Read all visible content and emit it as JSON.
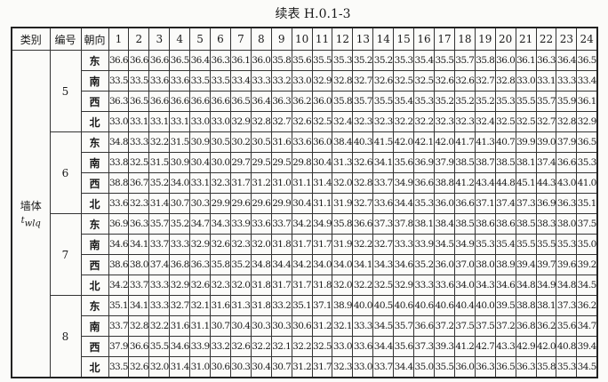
{
  "title": "续表 H.0.1-3",
  "headers": {
    "category": "类别",
    "number": "编号",
    "orientation": "朝向",
    "hours": [
      "1",
      "2",
      "3",
      "4",
      "5",
      "6",
      "7",
      "8",
      "9",
      "10",
      "11",
      "12",
      "13",
      "14",
      "15",
      "16",
      "17",
      "18",
      "19",
      "20",
      "21",
      "22",
      "23",
      "24"
    ]
  },
  "category": {
    "label": "墙体",
    "symbol": "t",
    "subscript": "wlq"
  },
  "groups": [
    {
      "number": "5",
      "rows": [
        {
          "orientation": "东",
          "values": [
            "36.6",
            "36.6",
            "36.6",
            "36.5",
            "36.4",
            "36.3",
            "36.1",
            "36.0",
            "35.8",
            "35.6",
            "35.5",
            "35.3",
            "35.2",
            "35.2",
            "35.3",
            "35.4",
            "35.5",
            "35.7",
            "35.8",
            "36.0",
            "36.1",
            "36.3",
            "36.4",
            "36.5"
          ]
        },
        {
          "orientation": "南",
          "values": [
            "33.5",
            "33.5",
            "33.6",
            "33.6",
            "33.5",
            "33.5",
            "33.4",
            "33.3",
            "33.2",
            "33.0",
            "32.9",
            "32.8",
            "32.7",
            "32.6",
            "32.5",
            "32.5",
            "32.6",
            "32.6",
            "32.7",
            "32.8",
            "33.0",
            "33.1",
            "33.3",
            "33.4"
          ]
        },
        {
          "orientation": "西",
          "values": [
            "36.3",
            "36.5",
            "36.6",
            "36.6",
            "36.6",
            "36.6",
            "36.5",
            "36.4",
            "36.3",
            "36.2",
            "36.0",
            "35.8",
            "35.7",
            "35.5",
            "35.4",
            "35.3",
            "35.2",
            "35.2",
            "35.2",
            "35.3",
            "35.5",
            "35.7",
            "35.9",
            "36.1"
          ]
        },
        {
          "orientation": "北",
          "values": [
            "33.0",
            "33.1",
            "33.1",
            "33.1",
            "33.0",
            "33.0",
            "32.9",
            "32.8",
            "32.7",
            "32.6",
            "32.5",
            "32.4",
            "32.3",
            "32.3",
            "32.2",
            "32.2",
            "32.3",
            "32.3",
            "32.4",
            "32.5",
            "32.5",
            "32.7",
            "32.8",
            "32.9"
          ]
        }
      ]
    },
    {
      "number": "6",
      "rows": [
        {
          "orientation": "东",
          "values": [
            "34.8",
            "33.3",
            "32.2",
            "31.5",
            "30.9",
            "30.5",
            "30.2",
            "30.5",
            "31.6",
            "33.6",
            "36.0",
            "38.4",
            "40.3",
            "41.5",
            "42.0",
            "42.1",
            "42.0",
            "41.7",
            "41.3",
            "40.7",
            "39.9",
            "39.0",
            "37.9",
            "36.5"
          ]
        },
        {
          "orientation": "南",
          "values": [
            "33.8",
            "32.5",
            "31.5",
            "30.9",
            "30.4",
            "30.0",
            "29.7",
            "29.5",
            "29.5",
            "29.8",
            "30.4",
            "31.3",
            "32.6",
            "34.1",
            "35.6",
            "36.9",
            "37.9",
            "38.5",
            "38.7",
            "38.5",
            "38.1",
            "37.4",
            "36.6",
            "35.3"
          ]
        },
        {
          "orientation": "西",
          "values": [
            "38.8",
            "36.7",
            "35.2",
            "34.0",
            "33.1",
            "32.3",
            "31.7",
            "31.2",
            "31.0",
            "31.1",
            "31.4",
            "32.0",
            "32.8",
            "33.7",
            "34.9",
            "36.6",
            "38.8",
            "41.2",
            "43.4",
            "44.8",
            "45.1",
            "44.3",
            "43.0",
            "41.0"
          ]
        },
        {
          "orientation": "北",
          "values": [
            "33.6",
            "32.3",
            "31.4",
            "30.7",
            "30.3",
            "29.9",
            "29.6",
            "29.6",
            "29.9",
            "30.4",
            "31.1",
            "31.9",
            "32.7",
            "33.6",
            "34.4",
            "35.3",
            "36.0",
            "36.6",
            "37.1",
            "37.4",
            "37.3",
            "36.9",
            "36.3",
            "35.1"
          ]
        }
      ]
    },
    {
      "number": "7",
      "rows": [
        {
          "orientation": "东",
          "values": [
            "36.9",
            "36.3",
            "35.7",
            "35.2",
            "34.7",
            "34.3",
            "33.9",
            "33.6",
            "33.7",
            "34.2",
            "34.9",
            "35.8",
            "36.6",
            "37.3",
            "37.8",
            "38.1",
            "38.4",
            "38.5",
            "38.6",
            "38.6",
            "38.5",
            "38.3",
            "38.0",
            "37.5"
          ]
        },
        {
          "orientation": "南",
          "values": [
            "34.6",
            "34.1",
            "33.7",
            "33.3",
            "32.9",
            "32.6",
            "32.3",
            "32.0",
            "31.8",
            "31.7",
            "31.7",
            "31.9",
            "32.2",
            "32.7",
            "33.3",
            "33.9",
            "34.5",
            "34.9",
            "35.3",
            "35.4",
            "35.5",
            "35.5",
            "35.3",
            "35.0"
          ]
        },
        {
          "orientation": "西",
          "values": [
            "38.6",
            "38.0",
            "37.4",
            "36.8",
            "36.3",
            "35.8",
            "35.2",
            "34.8",
            "34.4",
            "34.2",
            "34.0",
            "34.0",
            "34.1",
            "34.3",
            "34.6",
            "35.2",
            "36.0",
            "37.0",
            "38.0",
            "38.9",
            "39.4",
            "39.7",
            "39.6",
            "39.2"
          ]
        },
        {
          "orientation": "北",
          "values": [
            "34.2",
            "33.7",
            "33.3",
            "32.9",
            "32.6",
            "32.3",
            "32.0",
            "31.8",
            "31.7",
            "31.7",
            "31.8",
            "32.0",
            "32.2",
            "32.5",
            "32.9",
            "33.3",
            "33.6",
            "34.0",
            "34.3",
            "34.6",
            "34.8",
            "34.9",
            "34.8",
            "34.5"
          ]
        }
      ]
    },
    {
      "number": "8",
      "rows": [
        {
          "orientation": "东",
          "values": [
            "35.1",
            "34.1",
            "33.3",
            "32.7",
            "32.1",
            "31.6",
            "31.3",
            "31.8",
            "33.2",
            "35.1",
            "37.1",
            "38.9",
            "40.0",
            "40.5",
            "40.6",
            "40.6",
            "40.6",
            "40.4",
            "40.0",
            "39.5",
            "38.8",
            "38.1",
            "37.3",
            "36.2"
          ]
        },
        {
          "orientation": "南",
          "values": [
            "33.7",
            "32.8",
            "32.2",
            "31.6",
            "31.1",
            "30.7",
            "30.4",
            "30.3",
            "30.3",
            "30.6",
            "31.2",
            "32.1",
            "33.3",
            "34.5",
            "35.7",
            "36.6",
            "37.2",
            "37.5",
            "37.5",
            "37.2",
            "36.8",
            "36.2",
            "35.6",
            "34.7"
          ]
        },
        {
          "orientation": "西",
          "values": [
            "37.9",
            "36.6",
            "35.5",
            "34.6",
            "33.9",
            "33.2",
            "32.6",
            "32.2",
            "32.1",
            "32.2",
            "32.5",
            "33.0",
            "33.6",
            "34.4",
            "35.6",
            "37.3",
            "39.3",
            "41.2",
            "42.7",
            "43.3",
            "42.9",
            "42.0",
            "40.8",
            "39.4"
          ]
        },
        {
          "orientation": "北",
          "values": [
            "33.5",
            "32.6",
            "32.0",
            "31.4",
            "31.0",
            "30.6",
            "30.3",
            "30.4",
            "30.7",
            "31.2",
            "31.7",
            "32.3",
            "33.0",
            "33.7",
            "34.4",
            "35.0",
            "35.5",
            "36.0",
            "36.3",
            "36.5",
            "36.3",
            "35.8",
            "35.3",
            "34.5"
          ]
        }
      ]
    }
  ]
}
